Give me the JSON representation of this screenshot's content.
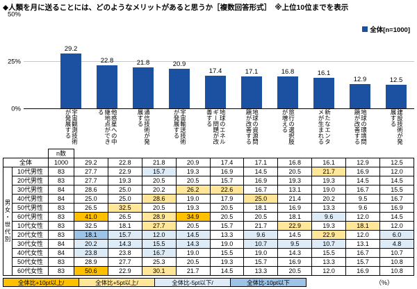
{
  "title": "◆人類を月に送ることには、どのようなメリットがあると思うか［複数回答形式］　※上位10位までを表示",
  "legend": {
    "label": "全体[n=1000]"
  },
  "chart_data": {
    "type": "bar",
    "title": "人類を月に送ることのメリット（複数回答・上位10位）",
    "categories": [
      "宇宙観測技術が発展する",
      "他惑星への中継地点ができる",
      "通信技術が発展する",
      "宇宙輸送技術が発展する",
      "地球のエネルギー問題が改善する",
      "地球の資源問題が改善する",
      "旅行の選択肢が増える",
      "新たなエンタメが生まれる",
      "地球の環境問題が改善する",
      "建設技術が発展する"
    ],
    "values": [
      29.2,
      22.8,
      21.8,
      20.9,
      17.4,
      17.1,
      16.8,
      16.1,
      12.9,
      12.5
    ],
    "ylim": [
      0,
      50
    ],
    "yticks": [
      "50%",
      "25%",
      "0%"
    ],
    "bar_color": "#1C50A1",
    "grid": "25%のみ",
    "legend_position": "top-right"
  },
  "table": {
    "corner_label": "n数",
    "group_label": "男女・世代別",
    "rows": [
      {
        "label": "全体",
        "n": "1000",
        "values": [
          29.2,
          22.8,
          21.8,
          20.9,
          17.4,
          17.1,
          16.8,
          16.1,
          12.9,
          12.5
        ]
      },
      {
        "label": "10代男性",
        "n": "83",
        "values": [
          27.7,
          22.9,
          15.7,
          19.3,
          16.9,
          14.5,
          20.5,
          21.7,
          16.9,
          12.0
        ]
      },
      {
        "label": "20代男性",
        "n": "83",
        "values": [
          27.7,
          19.3,
          20.5,
          20.5,
          15.7,
          16.9,
          19.3,
          19.3,
          14.5,
          14.5
        ]
      },
      {
        "label": "30代男性",
        "n": "84",
        "values": [
          28.6,
          25.0,
          20.2,
          26.2,
          22.6,
          16.7,
          13.1,
          19.0,
          16.7,
          15.5
        ]
      },
      {
        "label": "40代男性",
        "n": "84",
        "values": [
          25.0,
          25.0,
          28.6,
          19.0,
          17.9,
          25.0,
          21.4,
          20.2,
          9.5,
          16.7
        ]
      },
      {
        "label": "50代男性",
        "n": "83",
        "values": [
          26.5,
          32.5,
          20.5,
          19.3,
          20.5,
          18.1,
          16.9,
          13.3,
          9.6,
          16.9
        ]
      },
      {
        "label": "60代男性",
        "n": "83",
        "values": [
          41.0,
          26.5,
          28.9,
          34.9,
          20.5,
          20.5,
          18.1,
          9.6,
          12.0,
          14.5
        ]
      },
      {
        "label": "10代女性",
        "n": "83",
        "values": [
          32.5,
          18.1,
          27.7,
          20.5,
          15.7,
          21.7,
          22.9,
          19.3,
          18.1,
          12.0
        ]
      },
      {
        "label": "20代女性",
        "n": "83",
        "values": [
          18.1,
          15.7,
          12.0,
          14.5,
          13.3,
          9.6,
          14.5,
          22.9,
          12.0,
          6.0
        ]
      },
      {
        "label": "30代女性",
        "n": "84",
        "values": [
          20.2,
          14.3,
          15.5,
          14.3,
          19.0,
          10.7,
          9.5,
          10.7,
          13.1,
          4.8
        ]
      },
      {
        "label": "40代女性",
        "n": "84",
        "values": [
          23.8,
          23.8,
          16.7,
          19.0,
          15.5,
          19.0,
          14.3,
          15.5,
          16.7,
          10.7
        ]
      },
      {
        "label": "50代女性",
        "n": "83",
        "values": [
          28.9,
          27.7,
          25.3,
          20.5,
          19.3,
          15.7,
          16.9,
          13.3,
          15.7,
          10.8
        ]
      },
      {
        "label": "60代女性",
        "n": "83",
        "values": [
          50.6,
          22.9,
          30.1,
          21.7,
          14.5,
          13.3,
          20.5,
          12.0,
          16.9,
          10.8
        ]
      }
    ],
    "highlight_rule": {
      "plus10": 10,
      "plus5": 5,
      "minus5": -5,
      "minus10": -10
    }
  },
  "footer": {
    "legend": [
      {
        "label": "全体比+10pt以上/",
        "color": "#FFC000"
      },
      {
        "label": "全体比+5pt以上/",
        "color": "#FFE699"
      },
      {
        "label": "全体比-5pt以下/",
        "color": "#DDEBF7"
      },
      {
        "label": "全体比-10pt以下",
        "color": "#9DC3E6"
      }
    ],
    "unit": "（%）"
  }
}
